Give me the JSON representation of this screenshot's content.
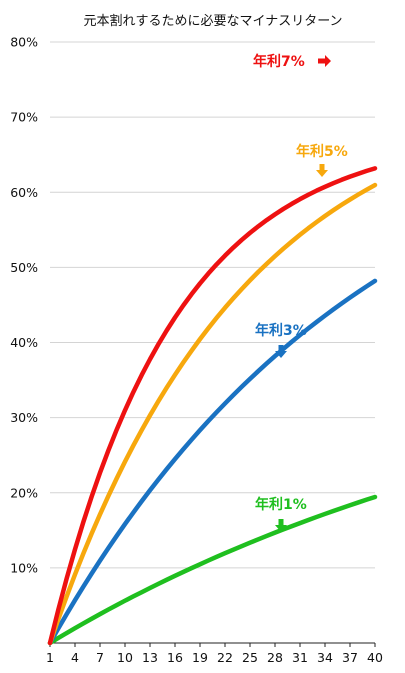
{
  "chart_data": {
    "type": "line",
    "title": "元本割れするために必要なマイナスリターン",
    "xlabel": "",
    "ylabel": "",
    "x": [
      1,
      2,
      3,
      4,
      5,
      6,
      7,
      8,
      9,
      10,
      11,
      12,
      13,
      14,
      15,
      16,
      17,
      18,
      19,
      20,
      21,
      22,
      23,
      24,
      25,
      26,
      27,
      28,
      29,
      30,
      31,
      32,
      33,
      34,
      35,
      36,
      37,
      38,
      39,
      40
    ],
    "x_tick_labels": [
      "1",
      "4",
      "7",
      "10",
      "13",
      "16",
      "19",
      "22",
      "25",
      "28",
      "31",
      "34",
      "37",
      "40"
    ],
    "x_ticks": [
      1,
      4,
      7,
      10,
      13,
      16,
      19,
      22,
      25,
      28,
      31,
      34,
      37,
      40
    ],
    "y_ticks": [
      0.1,
      0.2,
      0.3,
      0.4,
      0.5,
      0.6,
      0.7,
      0.8
    ],
    "y_tick_labels": [
      "10%",
      "20%",
      "30%",
      "40%",
      "50%",
      "60%",
      "70%",
      "80%"
    ],
    "ylim": [
      0,
      0.8
    ],
    "xlim": [
      1,
      40
    ],
    "grid": true,
    "series": [
      {
        "name": "年利1%",
        "color": "#1fbf1f",
        "values": [
          0,
          0.0067,
          0.0133,
          0.0197,
          0.0261,
          0.0323,
          0.0384,
          0.0445,
          0.0504,
          0.0563,
          0.062,
          0.0676,
          0.0732,
          0.0787,
          0.0841,
          0.0894,
          0.0946,
          0.0997,
          0.1048,
          0.1098,
          0.1147,
          0.1195,
          0.1242,
          0.1289,
          0.1335,
          0.138,
          0.1425,
          0.1469,
          0.1512,
          0.1554,
          0.1596,
          0.1637,
          0.1678,
          0.1718,
          0.1757,
          0.1796,
          0.1834,
          0.1871,
          0.1908,
          0.1944
        ]
      },
      {
        "name": "年利3%",
        "color": "#1a72c2",
        "values": [
          0,
          0.0195,
          0.0385,
          0.057,
          0.075,
          0.0925,
          0.1096,
          0.1263,
          0.1425,
          0.1583,
          0.1737,
          0.1887,
          0.2033,
          0.2175,
          0.2314,
          0.2449,
          0.258,
          0.2708,
          0.2833,
          0.2955,
          0.3073,
          0.3188,
          0.33,
          0.341,
          0.3516,
          0.362,
          0.3721,
          0.3819,
          0.3915,
          0.4008,
          0.4099,
          0.4188,
          0.4274,
          0.4358,
          0.444,
          0.452,
          0.4598,
          0.4674,
          0.4748,
          0.482
        ]
      },
      {
        "name": "年利5%",
        "color": "#f7a80d",
        "values": [
          0,
          0.0317,
          0.0621,
          0.0912,
          0.119,
          0.1457,
          0.1712,
          0.1956,
          0.219,
          0.2414,
          0.2628,
          0.2833,
          0.303,
          0.3218,
          0.3398,
          0.357,
          0.3735,
          0.3893,
          0.4045,
          0.419,
          0.4329,
          0.4462,
          0.4589,
          0.4711,
          0.4828,
          0.494,
          0.5047,
          0.515,
          0.5249,
          0.5343,
          0.5434,
          0.5521,
          0.5604,
          0.5684,
          0.576,
          0.5833,
          0.5903,
          0.597,
          0.6034,
          0.6096
        ]
      },
      {
        "name": "年利7%",
        "color": "#ee1111",
        "values": [
          0,
          0.0444,
          0.0859,
          0.1247,
          0.161,
          0.1949,
          0.2266,
          0.2562,
          0.2839,
          0.3098,
          0.334,
          0.3566,
          0.3777,
          0.3975,
          0.416,
          0.4333,
          0.4494,
          0.4645,
          0.4786,
          0.4918,
          0.5041,
          0.5156,
          0.5264,
          0.5365,
          0.5459,
          0.5547,
          0.5629,
          0.5706,
          0.5778,
          0.5845,
          0.5908,
          0.5967,
          0.6022,
          0.6073,
          0.6121,
          0.6166,
          0.6208,
          0.6247,
          0.6284,
          0.6318
        ]
      }
    ],
    "annotations": [
      {
        "text": "年利7%",
        "series": "年利7%",
        "arrow": "right"
      },
      {
        "text": "年利5%",
        "series": "年利5%",
        "arrow": "down"
      },
      {
        "text": "年利3%",
        "series": "年利3%",
        "arrow": "down"
      },
      {
        "text": "年利1%",
        "series": "年利1%",
        "arrow": "down"
      }
    ]
  }
}
